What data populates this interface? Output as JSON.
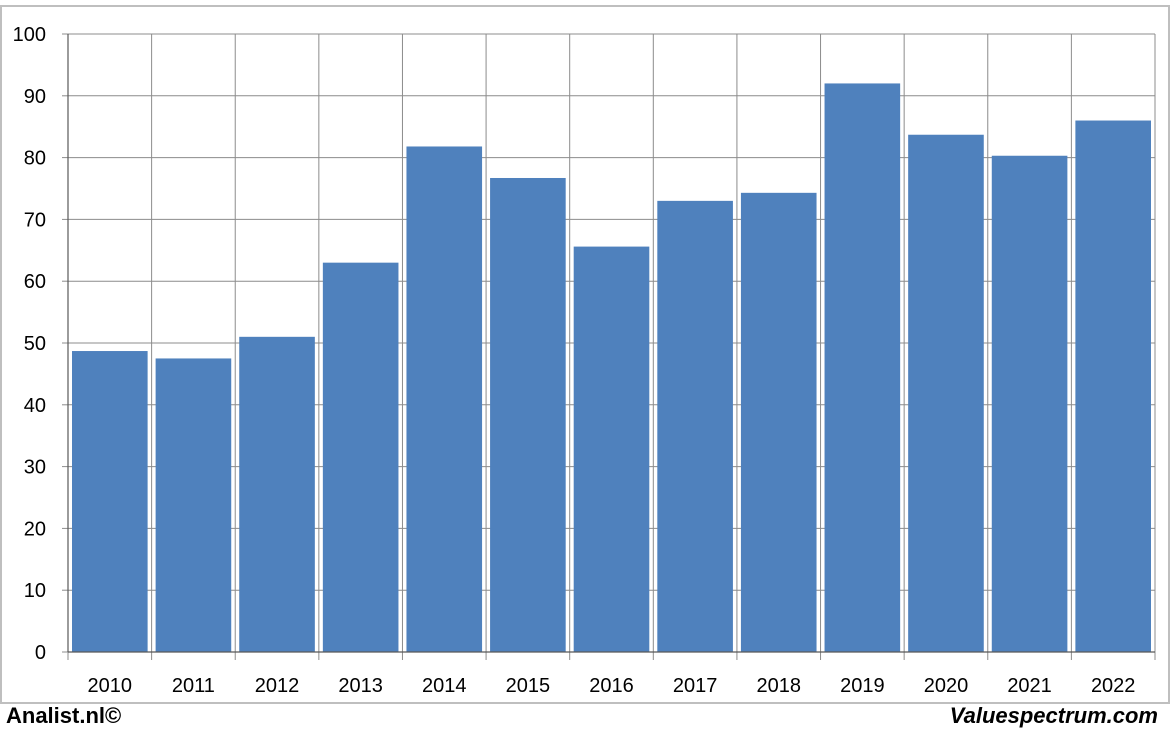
{
  "chart_data": {
    "type": "bar",
    "categories": [
      "2010",
      "2011",
      "2012",
      "2013",
      "2014",
      "2015",
      "2016",
      "2017",
      "2018",
      "2019",
      "2020",
      "2021",
      "2022"
    ],
    "values": [
      48.7,
      47.5,
      51.0,
      63.0,
      81.8,
      76.7,
      65.6,
      73.0,
      74.3,
      92.0,
      83.7,
      80.3,
      86.0
    ],
    "y_ticks": [
      "0",
      "10",
      "20",
      "30",
      "40",
      "50",
      "60",
      "70",
      "80",
      "90",
      "100"
    ],
    "ylim": [
      0,
      100
    ],
    "grid": true,
    "bar_color": "#4f81bd",
    "grid_color": "#8c8c8c"
  },
  "footer": {
    "left_text": "Analist.nl©",
    "right_text": "Valuespectrum.com"
  }
}
